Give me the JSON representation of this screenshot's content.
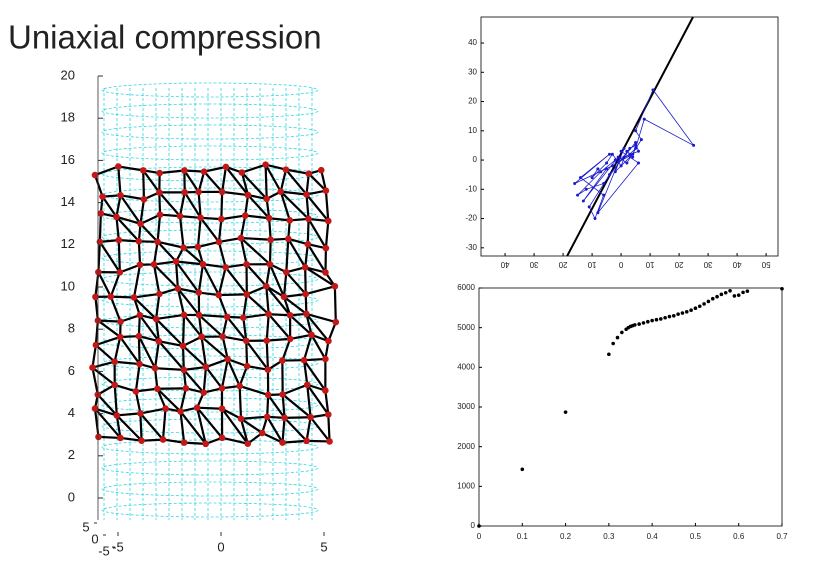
{
  "title": "Uniaxial compression",
  "chart_data": [
    {
      "type": "3d",
      "zlim": [
        0,
        20
      ],
      "zticks": [
        0,
        2,
        4,
        6,
        8,
        10,
        12,
        14,
        16,
        18,
        20
      ],
      "xticks": [
        -5,
        0,
        5
      ],
      "yticks": [
        5,
        0,
        -5
      ]
    },
    {
      "type": "line",
      "xlim": [
        -48.3,
        54.1
      ],
      "ylim": [
        -32.8,
        48.9
      ],
      "xticks": [
        {
          "value": -40,
          "label": "40"
        },
        {
          "value": -30,
          "label": "30"
        },
        {
          "value": -20,
          "label": "20"
        },
        {
          "value": -10,
          "label": "10"
        },
        0,
        10,
        20,
        30,
        40,
        50
      ],
      "yticks": [
        -30,
        -20,
        -10,
        0,
        10,
        20,
        30,
        40
      ],
      "series": [
        {
          "color": "#000000",
          "x": [
            -18.6,
            24.8
          ],
          "values": [
            -32.8,
            48.9
          ]
        },
        {
          "color": "#1a1acc",
          "markers": true,
          "x": [
            -8,
            -10,
            -5,
            -3,
            0,
            2,
            4,
            5,
            3,
            -6,
            -12,
            -15,
            -7,
            -2,
            1,
            6,
            5,
            -4,
            -11,
            -9,
            -6,
            -14,
            -4,
            -16,
            -3,
            3,
            5,
            8,
            25,
            11,
            5,
            7,
            2,
            -1,
            -13,
            -5,
            4,
            -2,
            1,
            -8,
            6,
            0
          ],
          "values": [
            -3,
            -6,
            -1,
            2,
            -2,
            3,
            1,
            5,
            4,
            -8,
            -10,
            -12,
            -4,
            0,
            1,
            3,
            6,
            -5,
            -16,
            -20,
            -12,
            -6,
            2,
            -8,
            -2,
            2,
            4,
            14,
            5,
            24,
            10,
            7,
            -1,
            1,
            -14,
            -3,
            2,
            -4,
            4,
            -18,
            -1,
            3
          ]
        }
      ]
    },
    {
      "type": "scatter",
      "color": "#000000",
      "xlim": [
        0,
        0.7
      ],
      "ylim": [
        0,
        6000
      ],
      "xticks": [
        0,
        0.1,
        0.2,
        0.3,
        0.4,
        0.5,
        0.6,
        0.7
      ],
      "yticks": [
        0,
        1000,
        2000,
        3000,
        4000,
        5000,
        6000
      ],
      "x": [
        0,
        0.1,
        0.2,
        0.3,
        0.31,
        0.32,
        0.33,
        0.34,
        0.345,
        0.35,
        0.355,
        0.36,
        0.37,
        0.38,
        0.39,
        0.4,
        0.41,
        0.42,
        0.43,
        0.44,
        0.45,
        0.46,
        0.47,
        0.48,
        0.49,
        0.5,
        0.51,
        0.52,
        0.53,
        0.54,
        0.55,
        0.56,
        0.57,
        0.58,
        0.59,
        0.6,
        0.61,
        0.62,
        0.7
      ],
      "values": [
        0,
        1430,
        2870,
        4330,
        4600,
        4750,
        4880,
        4960,
        5000,
        5030,
        5050,
        5070,
        5090,
        5120,
        5150,
        5180,
        5200,
        5220,
        5250,
        5280,
        5300,
        5340,
        5370,
        5400,
        5440,
        5490,
        5540,
        5600,
        5660,
        5730,
        5780,
        5840,
        5880,
        5930,
        5800,
        5820,
        5890,
        5920,
        5980
      ]
    }
  ]
}
